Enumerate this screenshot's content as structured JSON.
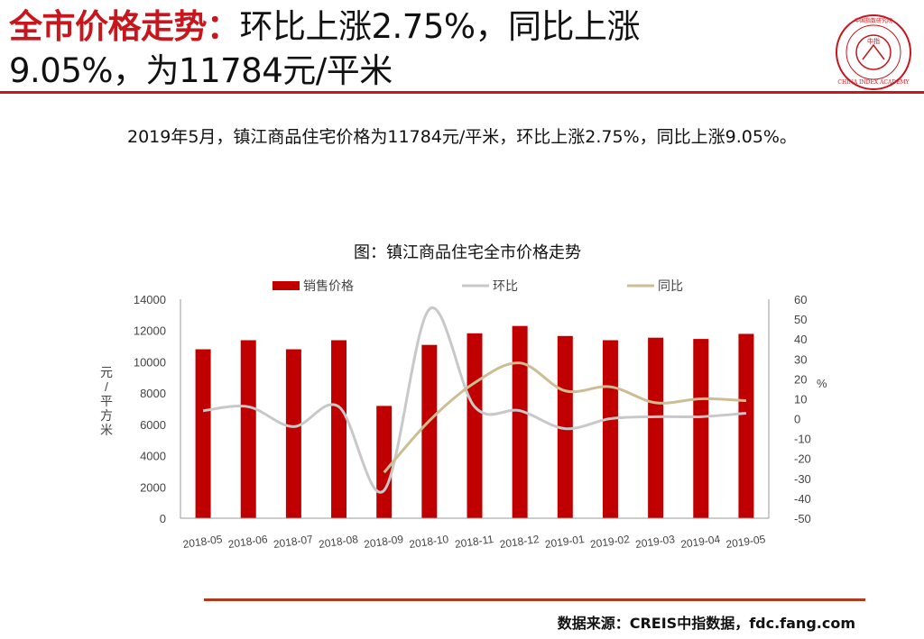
{
  "header": {
    "title_highlight": "全市价格走势：",
    "title_rest_line1": "环比上涨2.75%，同比上涨",
    "title_line2": "9.05%，为11784元/平米"
  },
  "summary": "2019年5月，镇江商品住宅价格为11784元/平米，环比上涨2.75%，同比上涨9.05%。",
  "logo": {
    "text_en": "CHINA INDEX ACADEMY",
    "text_cn_ring": "中国指数研究院",
    "text_cn_center": "中指"
  },
  "colors": {
    "accent": "#c8161d",
    "bar": "#c00000",
    "mom_line": "#c8c8c8",
    "yoy_line": "#cdbd92"
  },
  "chart_data": {
    "type": "bar",
    "title": "图：镇江商品住宅全市价格走势",
    "categories": [
      "2018-05",
      "2018-06",
      "2018-07",
      "2018-08",
      "2018-09",
      "2018-10",
      "2018-11",
      "2018-12",
      "2019-01",
      "2019-02",
      "2019-03",
      "2019-04",
      "2019-05"
    ],
    "series": [
      {
        "name": "销售价格",
        "type": "bar",
        "axis": "left",
        "values": [
          10800,
          11380,
          10800,
          11380,
          7180,
          11080,
          11820,
          12290,
          11650,
          11380,
          11540,
          11460,
          11784
        ]
      },
      {
        "name": "环比",
        "type": "line",
        "axis": "right",
        "values": [
          4,
          6,
          -4,
          6,
          -36,
          55,
          6,
          4,
          -5,
          0,
          1,
          1,
          2.75
        ]
      },
      {
        "name": "同比",
        "type": "line",
        "axis": "right",
        "values": [
          null,
          null,
          null,
          null,
          -27,
          -1,
          18,
          28,
          14,
          16,
          8,
          10,
          9.05
        ]
      }
    ],
    "ylabel": "元/平方米",
    "y2label": "%",
    "ylim": [
      0,
      14000
    ],
    "y2lim": [
      -50,
      60
    ],
    "yticks": [
      0,
      2000,
      4000,
      6000,
      8000,
      10000,
      12000,
      14000
    ],
    "y2ticks": [
      -50,
      -40,
      -30,
      -20,
      -10,
      0,
      10,
      20,
      30,
      40,
      50,
      60
    ],
    "legend_position": "top",
    "grid": false
  },
  "footer": {
    "source": "数据来源：CREIS中指数据，fdc.fang.com"
  }
}
